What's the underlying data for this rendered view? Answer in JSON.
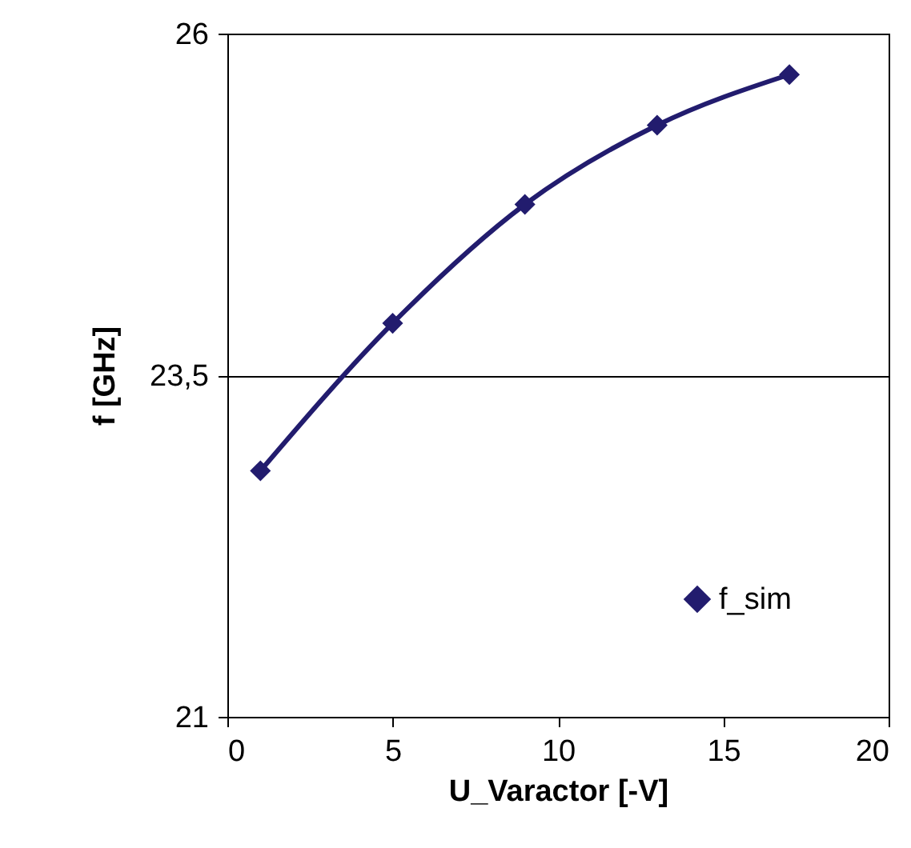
{
  "chart_data": {
    "type": "line",
    "xlabel": "U_Varactor [-V]",
    "ylabel": "f [GHz]",
    "x": [
      1,
      5,
      9,
      13,
      17
    ],
    "series": [
      {
        "name": "f_sim",
        "color": "#221c6e",
        "values": [
          22.8,
          23.88,
          24.75,
          25.33,
          25.7
        ]
      }
    ],
    "xlim": [
      0,
      20
    ],
    "xticks": [
      0,
      5,
      10,
      15,
      20
    ],
    "ylim": [
      21,
      26
    ],
    "yticks": [
      21,
      {
        "value": 23.5,
        "label": "23,5"
      },
      26
    ],
    "grid": "y",
    "legend": "bottom right",
    "marker": "diamond",
    "line_style": "solid"
  }
}
